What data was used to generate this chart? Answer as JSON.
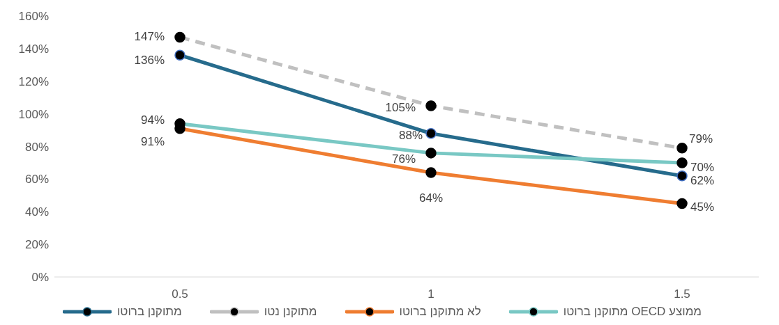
{
  "chart_data": {
    "type": "line",
    "categories": [
      "0.5",
      "1",
      "1.5"
    ],
    "series": [
      {
        "name": "מתוקנן ברוטו",
        "color": "#266b8c",
        "values": [
          136,
          88,
          62
        ],
        "value_labels": [
          "136%",
          "88%",
          "62%"
        ]
      },
      {
        "name": "מתוקנן נטו",
        "color": "#c0c0c0",
        "values": [
          147,
          105,
          79
        ],
        "value_labels": [
          "147%",
          "105%",
          "79%"
        ],
        "line_style": "dashed"
      },
      {
        "name": "לא מתוקנן ברוטו",
        "color": "#ef7d31",
        "values": [
          91,
          64,
          45
        ],
        "value_labels": [
          "91%",
          "64%",
          "45%"
        ]
      },
      {
        "name": "ממוצע OECD מתוקנן ברוטו",
        "color": "#79c8c4",
        "values": [
          94,
          76,
          70
        ],
        "value_labels": [
          "94%",
          "76%",
          "70%"
        ]
      }
    ],
    "ylim": [
      0,
      160
    ],
    "yticks": [
      {
        "value": 0,
        "label": "0%"
      },
      {
        "value": 20,
        "label": "20%"
      },
      {
        "value": 40,
        "label": "40%"
      },
      {
        "value": 60,
        "label": "60%"
      },
      {
        "value": 80,
        "label": "80%"
      },
      {
        "value": 100,
        "label": "100%"
      },
      {
        "value": 120,
        "label": "120%"
      },
      {
        "value": 140,
        "label": "140%"
      },
      {
        "value": 160,
        "label": "160%"
      }
    ],
    "grid": false,
    "legend": "bottom",
    "marker": "circle",
    "line_style": "solid"
  }
}
